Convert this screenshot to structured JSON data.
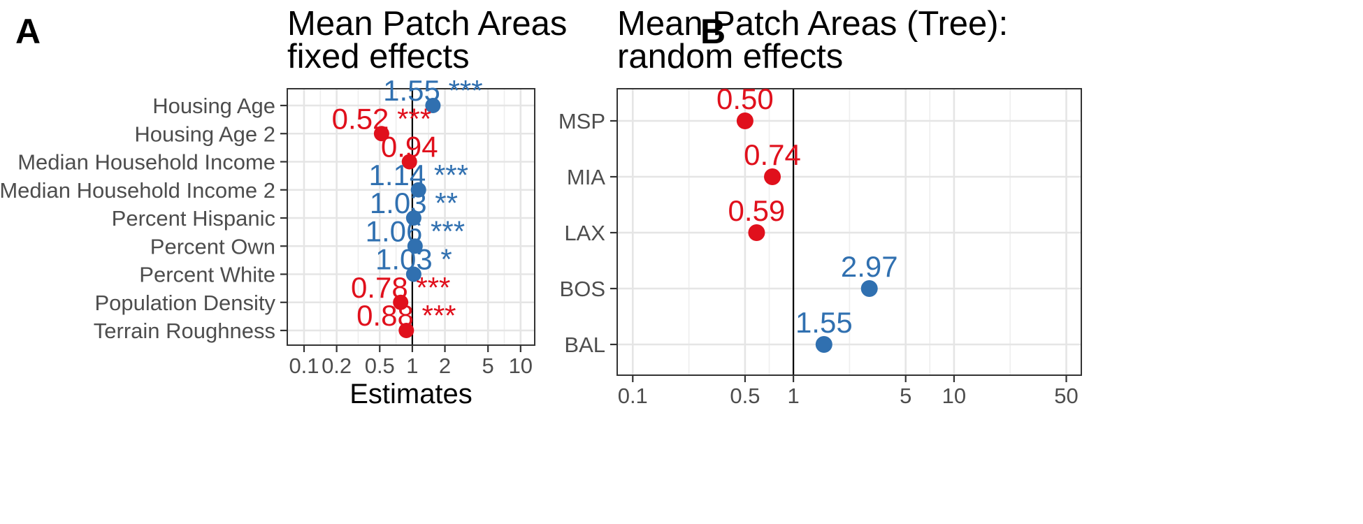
{
  "chart_data": [
    {
      "panel": "A",
      "type": "scatter",
      "title": "Mean Patch Areas\nfixed effects",
      "xlabel": "Estimates",
      "ylabel": "",
      "x_scale": "log10",
      "xlim": [
        0.07,
        13.5
      ],
      "x_ticks": [
        0.1,
        0.2,
        0.5,
        1,
        2,
        5,
        10
      ],
      "x_tick_labels": [
        "0.1",
        "0.2",
        "0.5",
        "1",
        "2",
        "5",
        "10"
      ],
      "reference_line": 1,
      "grid": true,
      "categories": [
        "Housing Age",
        "Housing Age 2",
        "Median Household Income",
        "Median Household Income 2",
        "Percent Hispanic",
        "Percent Own",
        "Percent White",
        "Population Density",
        "Terrain Roughness"
      ],
      "values": [
        1.55,
        0.52,
        0.94,
        1.14,
        1.03,
        1.06,
        1.03,
        0.78,
        0.88
      ],
      "labels": [
        "1.55 ***",
        "0.52 ***",
        "0.94",
        "1.14 ***",
        "1.03 **",
        "1.06 ***",
        "1.03 *",
        "0.78 ***",
        "0.88 ***"
      ],
      "colors": [
        "#3070B0",
        "#E0101C",
        "#E0101C",
        "#3070B0",
        "#3070B0",
        "#3070B0",
        "#3070B0",
        "#E0101C",
        "#E0101C"
      ]
    },
    {
      "panel": "B",
      "type": "scatter",
      "title": "Mean Patch Areas (Tree):\nrandom effects",
      "xlabel": "",
      "ylabel": "",
      "x_scale": "log10",
      "xlim": [
        0.08,
        62
      ],
      "x_ticks": [
        0.1,
        0.5,
        1,
        5,
        10,
        50
      ],
      "x_tick_labels": [
        "0.1",
        "0.5",
        "1",
        "5",
        "10",
        "50"
      ],
      "reference_line": 1,
      "grid": true,
      "categories": [
        "MSP",
        "MIA",
        "LAX",
        "BOS",
        "BAL"
      ],
      "values": [
        0.5,
        0.74,
        0.59,
        2.97,
        1.55
      ],
      "labels": [
        "0.50",
        "0.74",
        "0.59",
        "2.97",
        "1.55"
      ],
      "colors": [
        "#E0101C",
        "#E0101C",
        "#E0101C",
        "#3070B0",
        "#3070B0"
      ]
    }
  ]
}
